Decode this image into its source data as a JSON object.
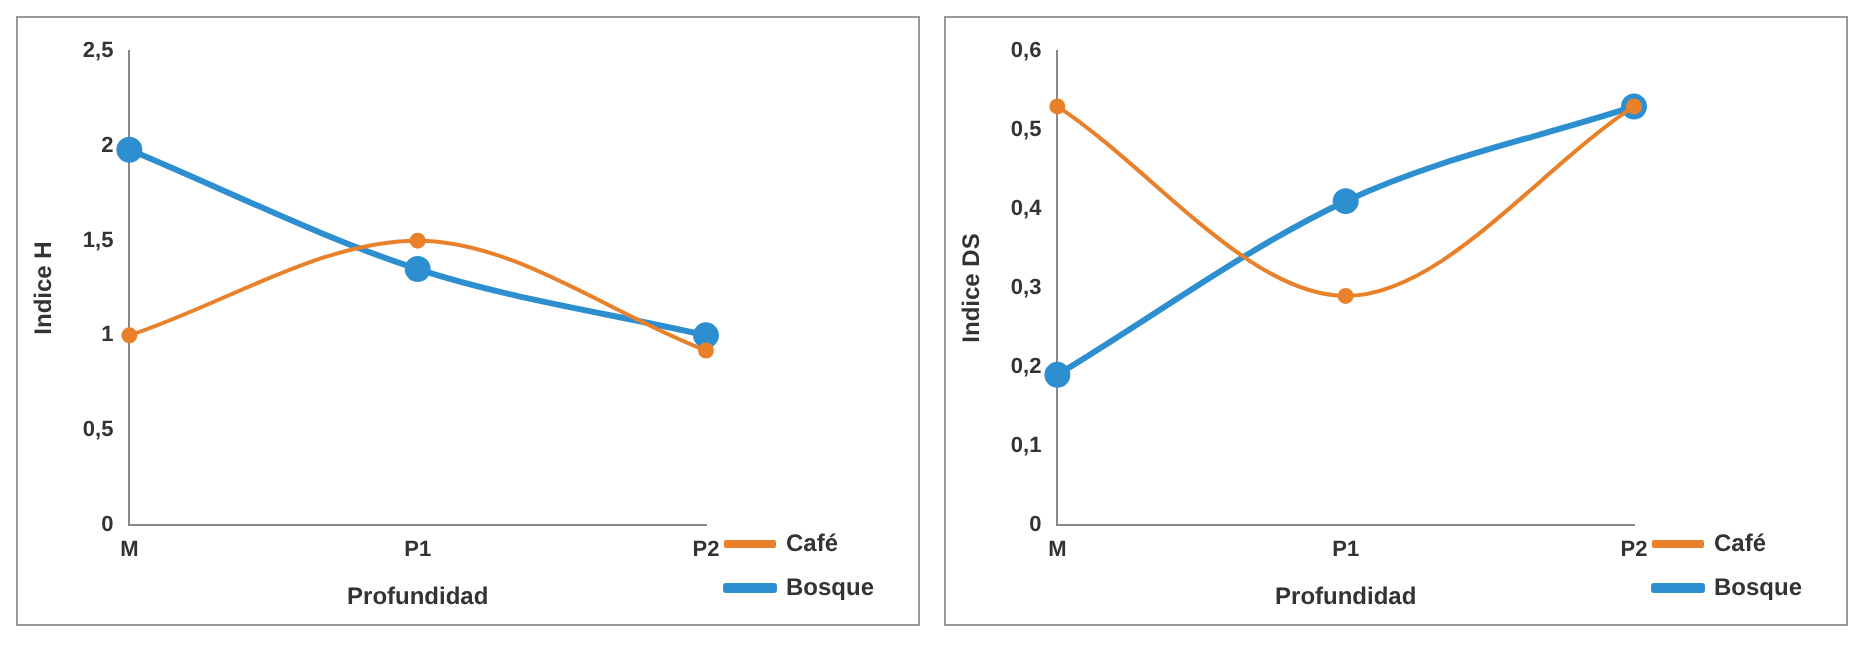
{
  "chart_data": [
    {
      "type": "line",
      "xlabel": "Profundidad",
      "ylabel": "Indice H",
      "categories": [
        "M",
        "P1",
        "P2"
      ],
      "series": [
        {
          "name": "Bosque",
          "color": "#2e8fd0",
          "values": [
            1.98,
            1.35,
            1.0
          ]
        },
        {
          "name": "Café",
          "color": "#e8812a",
          "values": [
            1.0,
            1.5,
            0.92
          ]
        }
      ],
      "ylim": [
        0,
        2.5
      ],
      "yticks": [
        0,
        {
          "value": 0.5,
          "label": "0,5"
        },
        1,
        {
          "value": 1.5,
          "label": "1,5"
        },
        2,
        {
          "value": 2.5,
          "label": "2,5"
        }
      ],
      "grid": false,
      "legend": "right",
      "marker": "circle",
      "line_style": "solid"
    },
    {
      "type": "line",
      "xlabel": "Profundidad",
      "ylabel": "Indice DS",
      "categories": [
        "M",
        "P1",
        "P2"
      ],
      "series": [
        {
          "name": "Bosque",
          "color": "#2e8fd0",
          "values": [
            0.19,
            0.41,
            0.53
          ]
        },
        {
          "name": "Café",
          "color": "#e8812a",
          "values": [
            0.53,
            0.29,
            0.53
          ]
        }
      ],
      "ylim": [
        0,
        0.6
      ],
      "yticks": [
        0,
        {
          "value": 0.1,
          "label": "0,1"
        },
        {
          "value": 0.2,
          "label": "0,2"
        },
        {
          "value": 0.3,
          "label": "0,3"
        },
        {
          "value": 0.4,
          "label": "0,4"
        },
        {
          "value": 0.5,
          "label": "0,5"
        },
        {
          "value": 0.6,
          "label": "0,6"
        }
      ],
      "grid": false,
      "legend": "right",
      "marker": "circle",
      "line_style": "solid"
    }
  ]
}
